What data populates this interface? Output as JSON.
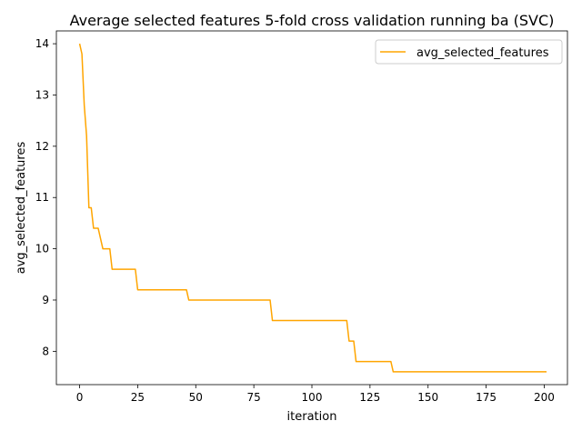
{
  "chart_data": {
    "type": "line",
    "title": "Average selected features 5-fold cross validation running ba (SVC)",
    "xlabel": "iteration",
    "ylabel": "avg_selected_features",
    "xlim": [
      -10,
      210
    ],
    "ylim": [
      7.35,
      14.25
    ],
    "xticks": [
      0,
      25,
      50,
      75,
      100,
      125,
      150,
      175,
      200
    ],
    "yticks": [
      8,
      9,
      10,
      11,
      12,
      13,
      14
    ],
    "grid": false,
    "legend_position": "upper right",
    "series": [
      {
        "name": "avg_selected_features",
        "color": "#ffa500",
        "x": [
          0,
          1,
          2,
          3,
          4,
          5,
          6,
          7,
          8,
          9,
          10,
          11,
          12,
          13,
          14,
          15,
          16,
          17,
          18,
          19,
          20,
          21,
          22,
          23,
          24,
          25,
          46,
          47,
          82,
          83,
          115,
          116,
          118,
          119,
          134,
          135,
          201
        ],
        "y": [
          14.0,
          13.8,
          12.8,
          12.2,
          10.8,
          10.8,
          10.4,
          10.4,
          10.4,
          10.2,
          10.0,
          10.0,
          10.0,
          10.0,
          9.6,
          9.6,
          9.6,
          9.6,
          9.6,
          9.6,
          9.6,
          9.6,
          9.6,
          9.6,
          9.6,
          9.2,
          9.2,
          9.0,
          9.0,
          8.6,
          8.6,
          8.2,
          8.2,
          7.8,
          7.8,
          7.6,
          7.6
        ]
      }
    ]
  }
}
